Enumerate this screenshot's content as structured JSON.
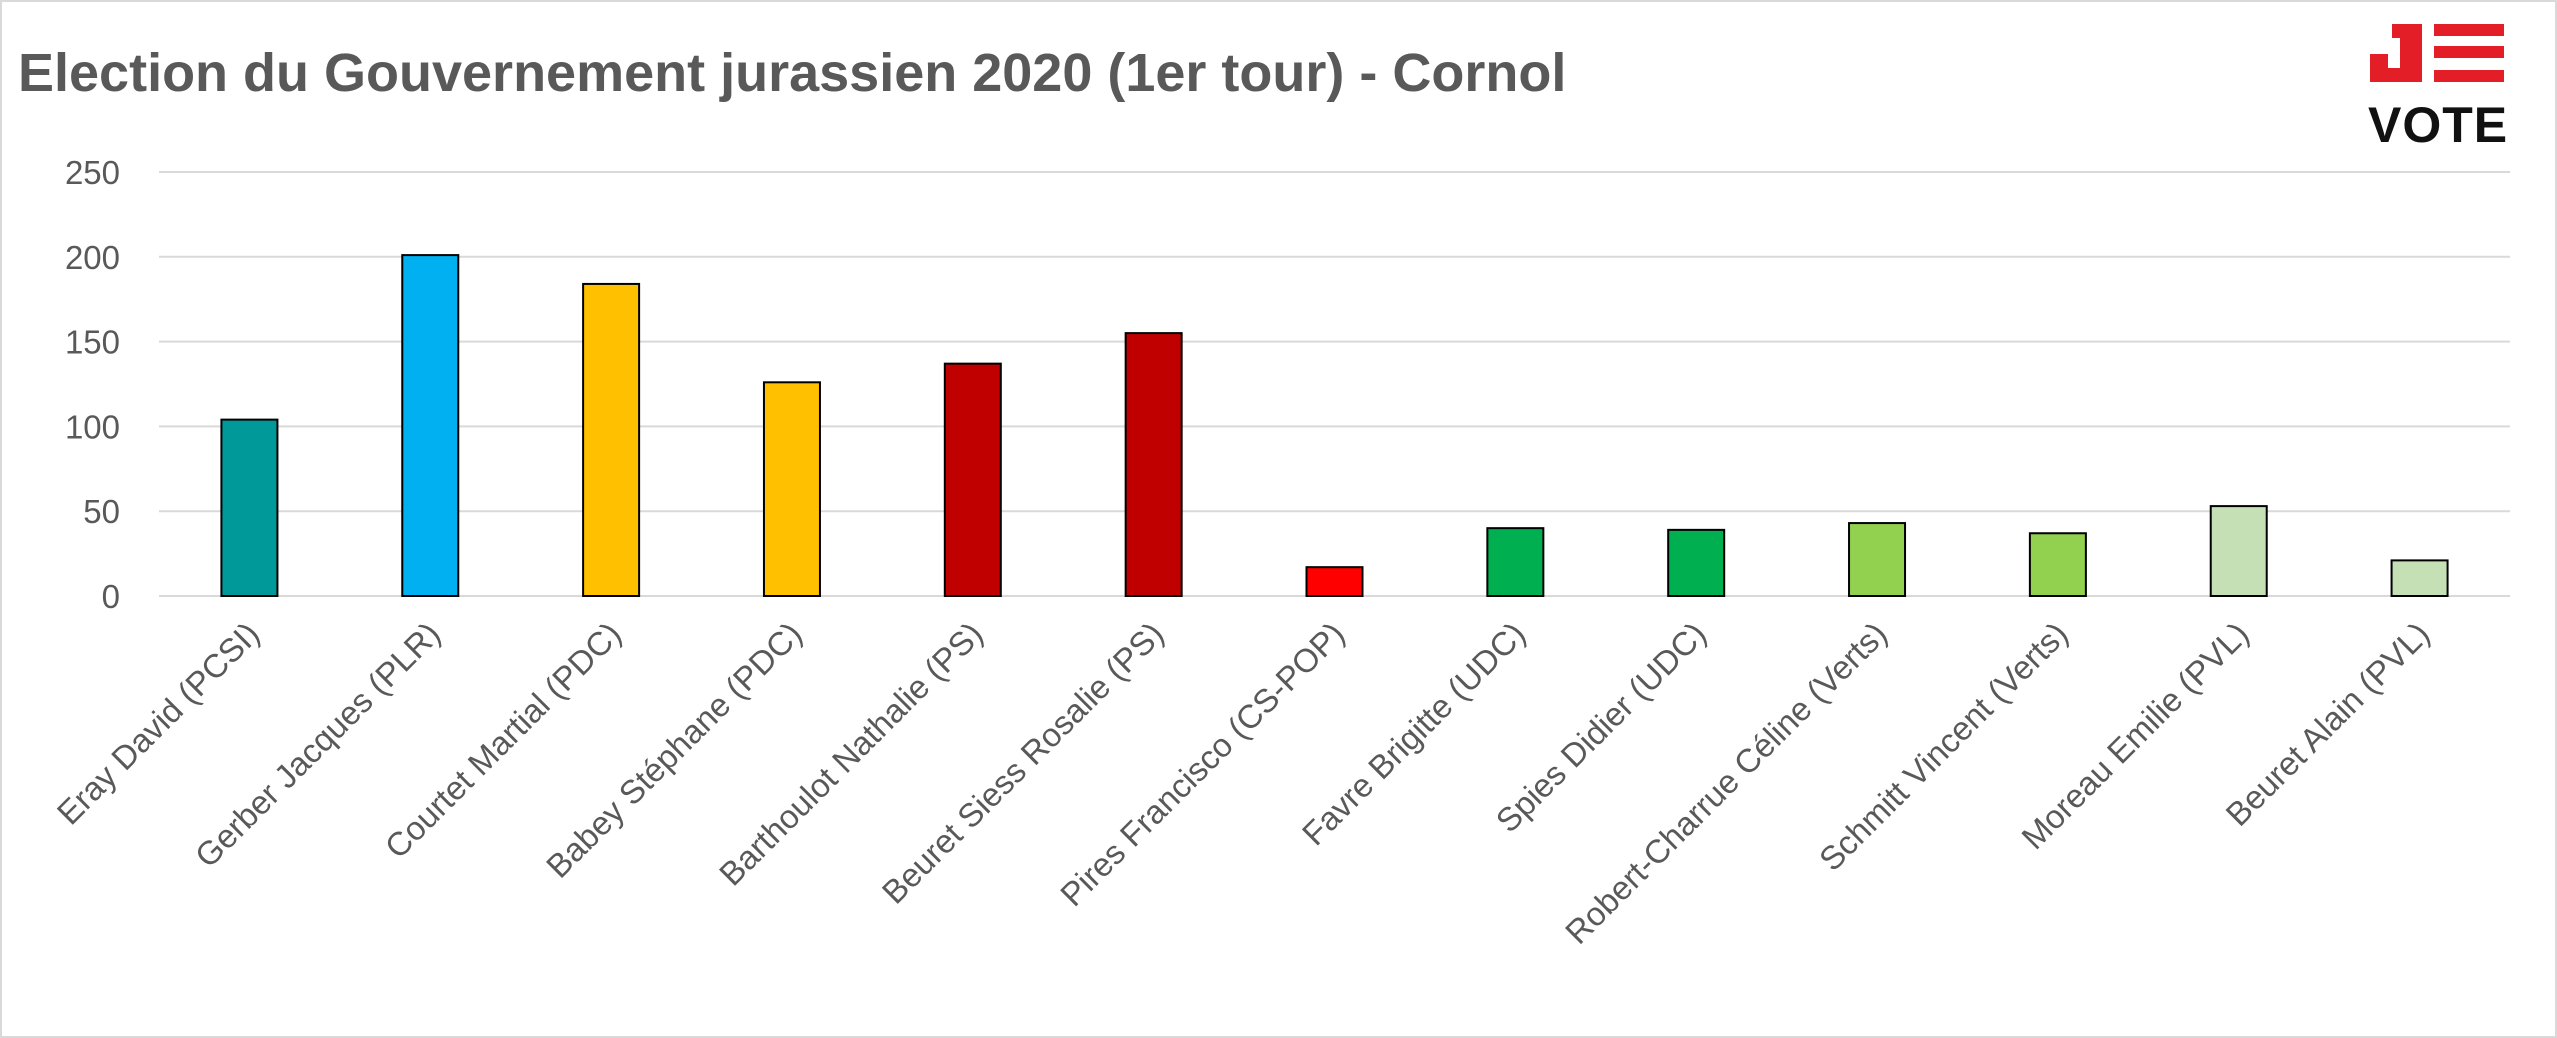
{
  "chart_data": {
    "type": "bar",
    "title": "Election du Gouvernement jurassien 2020 (1er tour) - Cornol",
    "xlabel": "",
    "ylabel": "",
    "ylim": [
      0,
      250
    ],
    "yticks": [
      "0",
      "50",
      "100",
      "150",
      "200",
      "250"
    ],
    "grid": true,
    "legend": "none",
    "categories": [
      "Eray David (PCSI)",
      "Gerber Jacques (PLR)",
      "Courtet Martial (PDC)",
      "Babey Stéphane (PDC)",
      "Barthoulot Nathalie (PS)",
      "Beuret Siess Rosalie (PS)",
      "Pires Francisco (CS-POP)",
      "Favre Brigitte (UDC)",
      "Spies Didier (UDC)",
      "Robert-Charrue Céline (Verts)",
      "Schmitt Vincent (Verts)",
      "Moreau Emilie (PVL)",
      "Beuret Alain (PVL)"
    ],
    "values": [
      104,
      201,
      184,
      126,
      137,
      155,
      17,
      40,
      39,
      43,
      37,
      53,
      21
    ],
    "colors": [
      "#009999",
      "#00b0f0",
      "#ffc000",
      "#ffc000",
      "#c00000",
      "#c00000",
      "#ff0000",
      "#00b050",
      "#00b050",
      "#92d050",
      "#92d050",
      "#c5e0b4",
      "#c5e0b4"
    ]
  },
  "logo": {
    "text": "VOTE",
    "mark_color": "#e41e26",
    "text_color": "#111111"
  }
}
